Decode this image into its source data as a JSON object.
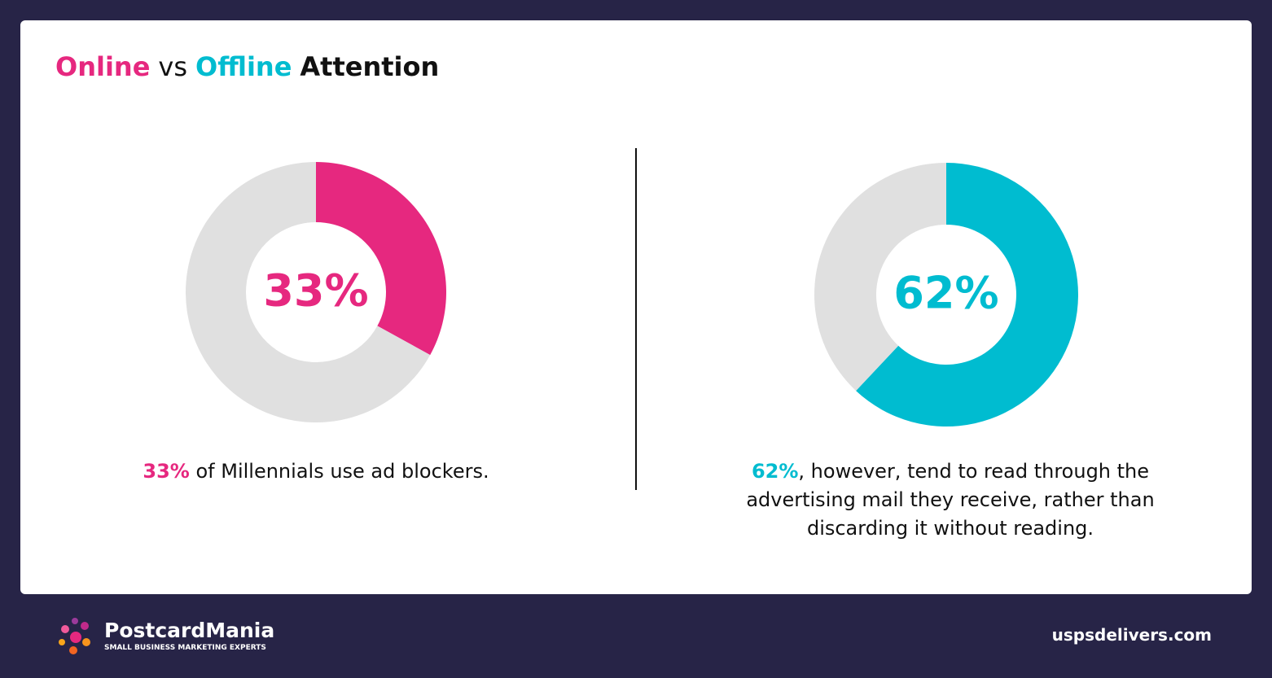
{
  "header": {
    "title": [
      "Online",
      "vs",
      "Offline",
      "Attention"
    ]
  },
  "chart_data": [
    {
      "type": "donut",
      "values": [
        33,
        67
      ],
      "value_labels": [
        "33%",
        null
      ],
      "colors": [
        "#e6287f",
        "#e0e0e0"
      ],
      "caption_highlight": "33%",
      "caption": "of Millennials use ad blockers."
    },
    {
      "type": "donut",
      "values": [
        62,
        38
      ],
      "value_labels": [
        "62%",
        null
      ],
      "colors": [
        "#00bcd0",
        "#e0e0e0"
      ],
      "caption_highlight": "62%",
      "caption": ", however, tend to read through the advertising mail they receive, rather than discarding it without reading."
    }
  ],
  "footer": {
    "brand": "PostcardMania",
    "tagline": "SMALL BUSINESS MARKETING EXPERTS",
    "url": "uspsdelivers.com"
  }
}
